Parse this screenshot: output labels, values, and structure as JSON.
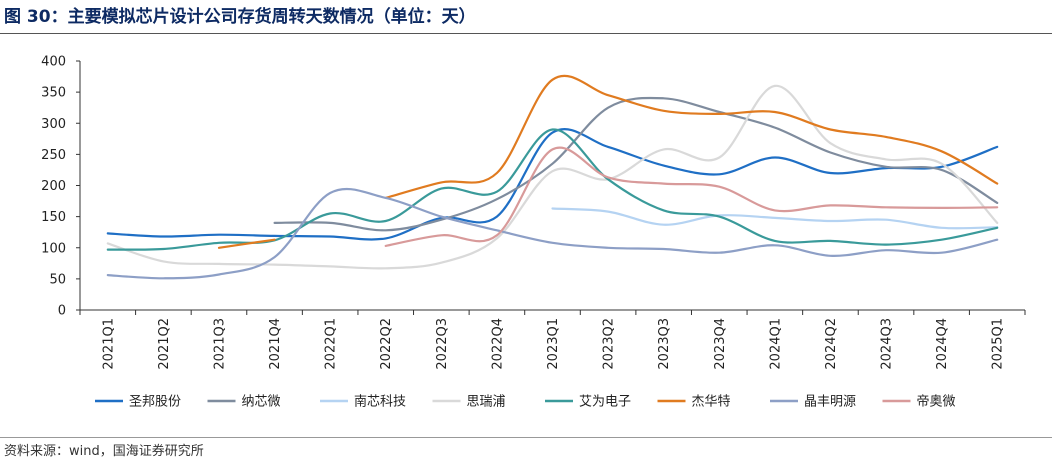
{
  "title": "图 30：主要模拟芯片设计公司存货周转天数情况（单位：天）",
  "source": "资料来源：wind，国海证券研究所",
  "chart_data": {
    "type": "line",
    "categories": [
      "2021Q1",
      "2021Q2",
      "2021Q3",
      "2021Q4",
      "2022Q1",
      "2022Q2",
      "2022Q3",
      "2022Q4",
      "2023Q1",
      "2023Q2",
      "2023Q3",
      "2023Q4",
      "2024Q1",
      "2024Q2",
      "2024Q3",
      "2024Q4",
      "2025Q1"
    ],
    "ylim": [
      0,
      400
    ],
    "yticks": [
      0,
      50,
      100,
      150,
      200,
      250,
      300,
      350,
      400
    ],
    "grid": false,
    "legend_position": "bottom",
    "series": [
      {
        "name": "圣邦股份",
        "color": "#1f6fc5",
        "values": [
          123,
          118,
          121,
          119,
          118,
          115,
          148,
          150,
          285,
          262,
          232,
          218,
          245,
          220,
          228,
          230,
          262
        ]
      },
      {
        "name": "纳芯微",
        "color": "#7f8c9e",
        "values": [
          null,
          null,
          null,
          140,
          140,
          128,
          145,
          178,
          235,
          325,
          340,
          318,
          293,
          253,
          230,
          225,
          172
        ]
      },
      {
        "name": "南芯科技",
        "color": "#b5d3f2",
        "values": [
          null,
          null,
          null,
          null,
          null,
          null,
          null,
          null,
          163,
          158,
          137,
          152,
          148,
          143,
          145,
          132,
          133
        ]
      },
      {
        "name": "思瑞浦",
        "color": "#d9d9d9",
        "values": [
          107,
          78,
          74,
          73,
          70,
          67,
          76,
          115,
          223,
          210,
          258,
          245,
          360,
          268,
          242,
          235,
          140
        ]
      },
      {
        "name": "艾为电子",
        "color": "#3a9a9a",
        "values": [
          97,
          98,
          108,
          112,
          155,
          143,
          195,
          190,
          290,
          210,
          160,
          150,
          111,
          111,
          105,
          113,
          132
        ]
      },
      {
        "name": "杰华特",
        "color": "#e07b20",
        "values": [
          null,
          null,
          100,
          113,
          null,
          180,
          205,
          220,
          370,
          345,
          320,
          315,
          318,
          290,
          278,
          255,
          203
        ]
      },
      {
        "name": "晶丰明源",
        "color": "#8d9fc6",
        "values": [
          56,
          51,
          57,
          85,
          188,
          180,
          150,
          128,
          108,
          100,
          98,
          92,
          104,
          87,
          96,
          92,
          113
        ]
      },
      {
        "name": "帝奥微",
        "color": "#d89a9a",
        "values": [
          null,
          null,
          null,
          null,
          null,
          103,
          120,
          120,
          258,
          213,
          203,
          198,
          160,
          168,
          165,
          164,
          165
        ]
      }
    ]
  }
}
